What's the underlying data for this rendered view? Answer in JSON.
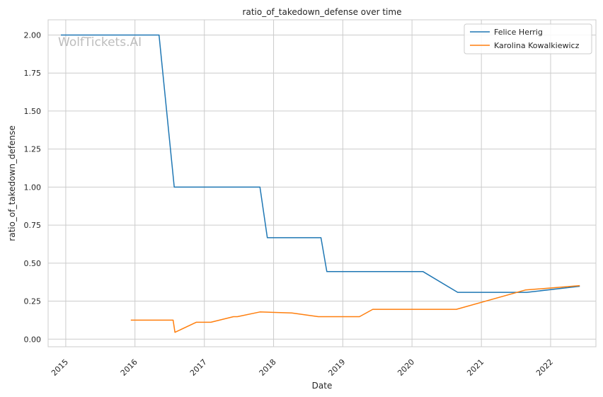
{
  "chart_data": {
    "type": "line",
    "title": "ratio_of_takedown_defense over time",
    "xlabel": "Date",
    "ylabel": "ratio_of_takedown_defense",
    "watermark": "WolfTickets.AI",
    "x_ticks": [
      "2015",
      "2016",
      "2017",
      "2018",
      "2019",
      "2020",
      "2021",
      "2022"
    ],
    "y_ticks": [
      "0.00",
      "0.25",
      "0.50",
      "0.75",
      "1.00",
      "1.25",
      "1.50",
      "1.75",
      "2.00"
    ],
    "ylim": [
      -0.05,
      2.1
    ],
    "xlim": [
      "2014-09-30",
      "2022-08-28"
    ],
    "grid": true,
    "legend_position": "top-right",
    "series": [
      {
        "name": "Felice Herrig",
        "color": "#1f77b4",
        "x": [
          "2014-12-06",
          "2016-05-07",
          "2016-07-26",
          "2017-10-21",
          "2017-11-29",
          "2018-09-08",
          "2018-10-09",
          "2020-02-28",
          "2020-08-29",
          "2021-08-28",
          "2022-06-04"
        ],
        "y": [
          2.0,
          2.0,
          1.0,
          1.0,
          0.667,
          0.667,
          0.444,
          0.444,
          0.308,
          0.308,
          0.348
        ]
      },
      {
        "name": "Karolina Kowalkiewicz",
        "color": "#ff7f0e",
        "x": [
          "2015-12-10",
          "2016-07-20",
          "2016-07-30",
          "2016-11-19",
          "2017-02-04",
          "2017-06-03",
          "2017-06-24",
          "2017-10-21",
          "2018-04-07",
          "2018-08-25",
          "2019-03-30",
          "2019-06-08",
          "2020-08-22",
          "2021-08-21",
          "2022-06-04"
        ],
        "y": [
          0.125,
          0.125,
          0.045,
          0.111,
          0.111,
          0.148,
          0.148,
          0.179,
          0.172,
          0.148,
          0.148,
          0.196,
          0.196,
          0.323,
          0.352
        ]
      }
    ]
  }
}
